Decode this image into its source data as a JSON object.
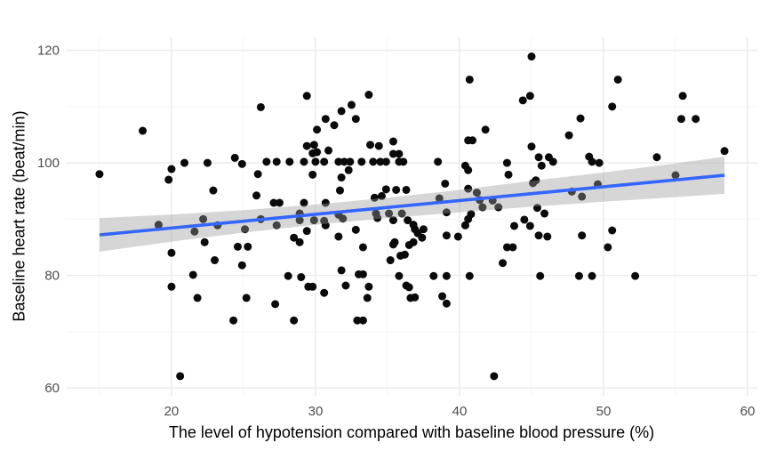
{
  "chart_data": {
    "type": "scatter",
    "title": "",
    "xlabel": "The level of hypotension compared with baseline blood pressure (%)",
    "ylabel": "Baseline heart rate (beat/min)",
    "x_ticks": [
      20,
      30,
      40,
      50,
      60
    ],
    "y_ticks": [
      60,
      80,
      100,
      120
    ],
    "x_minor": [
      15,
      25,
      35,
      45,
      55
    ],
    "y_minor": [
      70,
      90,
      110
    ],
    "xlim": [
      12.72,
      60.68
    ],
    "ylim": [
      58.6,
      122.3
    ],
    "grid": "on",
    "legend": "none",
    "colors": {
      "point": "#0a0a0a",
      "regression_line": "#3366FF",
      "confidence_band": "rgba(153,153,153,0.4)",
      "grid_major": "#e9e9e9",
      "grid_minor": "#f5f5f5",
      "tick_text": "#4d4d4d",
      "axis_title_text": "#000000",
      "background": "#ffffff"
    },
    "regression": {
      "model": "linear",
      "line": [
        [
          15.0,
          87.2
        ],
        [
          58.4,
          97.8
        ]
      ],
      "band_x": [
        15.0,
        20.0,
        25.0,
        30.0,
        35.0,
        40.0,
        45.0,
        50.0,
        55.0,
        58.4
      ],
      "band_upper": [
        90.2,
        90.8,
        91.6,
        92.6,
        93.8,
        95.2,
        96.8,
        98.3,
        99.9,
        101.1
      ],
      "band_lower": [
        84.2,
        86.0,
        87.6,
        89.0,
        90.2,
        91.2,
        92.2,
        93.1,
        93.9,
        94.5
      ]
    },
    "points": [
      [
        18.0,
        105.7
      ],
      [
        15.0,
        98.0
      ],
      [
        26.2,
        109.9
      ],
      [
        29.4,
        111.9
      ],
      [
        30.1,
        105.9
      ],
      [
        30.7,
        107.8
      ],
      [
        31.3,
        106.7
      ],
      [
        31.8,
        109.2
      ],
      [
        32.5,
        110.3
      ],
      [
        32.8,
        107.8
      ],
      [
        33.7,
        112.1
      ],
      [
        40.7,
        114.8
      ],
      [
        41.8,
        105.9
      ],
      [
        44.4,
        111.1
      ],
      [
        44.9,
        111.9
      ],
      [
        45.0,
        118.9
      ],
      [
        47.6,
        104.9
      ],
      [
        48.4,
        107.9
      ],
      [
        50.6,
        110.0
      ],
      [
        51.0,
        114.8
      ],
      [
        55.4,
        107.8
      ],
      [
        55.5,
        111.9
      ],
      [
        56.4,
        107.8
      ],
      [
        29.4,
        103.0
      ],
      [
        29.9,
        103.2
      ],
      [
        29.8,
        101.7
      ],
      [
        30.1,
        101.9
      ],
      [
        30.9,
        102.2
      ],
      [
        33.8,
        103.2
      ],
      [
        34.4,
        103.0
      ],
      [
        35.4,
        103.8
      ],
      [
        35.4,
        101.6
      ],
      [
        35.8,
        101.6
      ],
      [
        40.6,
        104.0
      ],
      [
        40.9,
        104.0
      ],
      [
        45.0,
        102.9
      ],
      [
        53.7,
        101.0
      ],
      [
        58.4,
        102.1
      ],
      [
        20.9,
        100.0
      ],
      [
        22.5,
        100.0
      ],
      [
        24.4,
        100.9
      ],
      [
        24.9,
        99.8
      ],
      [
        26.6,
        100.2
      ],
      [
        27.3,
        100.2
      ],
      [
        28.2,
        100.2
      ],
      [
        29.2,
        100.2
      ],
      [
        30.0,
        100.2
      ],
      [
        30.6,
        100.2
      ],
      [
        31.6,
        100.2
      ],
      [
        32.0,
        100.2
      ],
      [
        32.4,
        100.2
      ],
      [
        33.2,
        100.2
      ],
      [
        34.0,
        100.2
      ],
      [
        34.5,
        100.2
      ],
      [
        34.9,
        100.2
      ],
      [
        35.8,
        100.2
      ],
      [
        36.1,
        100.2
      ],
      [
        38.5,
        100.2
      ],
      [
        43.3,
        100.0
      ],
      [
        46.5,
        100.2
      ],
      [
        45.5,
        101.0
      ],
      [
        46.2,
        101.0
      ],
      [
        49.0,
        101.1
      ],
      [
        49.2,
        100.2
      ],
      [
        49.7,
        100.0
      ],
      [
        19.8,
        97.0
      ],
      [
        20.0,
        98.9
      ],
      [
        26.0,
        98.0
      ],
      [
        29.8,
        97.9
      ],
      [
        31.8,
        97.4
      ],
      [
        32.3,
        98.7
      ],
      [
        39.0,
        96.3
      ],
      [
        40.4,
        99.5
      ],
      [
        40.6,
        98.7
      ],
      [
        43.4,
        97.9
      ],
      [
        45.1,
        96.4
      ],
      [
        45.3,
        96.9
      ],
      [
        45.7,
        99.5
      ],
      [
        55.0,
        97.8
      ],
      [
        22.9,
        95.1
      ],
      [
        25.9,
        94.2
      ],
      [
        31.7,
        95.1
      ],
      [
        34.9,
        95.3
      ],
      [
        35.6,
        95.2
      ],
      [
        36.3,
        95.2
      ],
      [
        38.6,
        93.7
      ],
      [
        40.6,
        95.4
      ],
      [
        41.2,
        94.7
      ],
      [
        47.8,
        94.9
      ],
      [
        48.5,
        94.0
      ],
      [
        49.6,
        96.2
      ],
      [
        27.1,
        92.9
      ],
      [
        27.5,
        92.9
      ],
      [
        29.2,
        92.9
      ],
      [
        30.7,
        92.9
      ],
      [
        34.1,
        93.8
      ],
      [
        34.6,
        94.1
      ],
      [
        41.4,
        93.4
      ],
      [
        41.6,
        92.1
      ],
      [
        42.3,
        93.3
      ],
      [
        42.7,
        92.1
      ],
      [
        45.4,
        92.0
      ],
      [
        19.1,
        89.0
      ],
      [
        21.6,
        87.8
      ],
      [
        22.2,
        90.0
      ],
      [
        23.2,
        88.9
      ],
      [
        25.1,
        88.2
      ],
      [
        25.3,
        85.1
      ],
      [
        24.6,
        85.1
      ],
      [
        22.3,
        85.9
      ],
      [
        26.2,
        90.0
      ],
      [
        27.3,
        88.9
      ],
      [
        28.9,
        91.0
      ],
      [
        28.9,
        89.8
      ],
      [
        29.9,
        89.8
      ],
      [
        30.6,
        89.7
      ],
      [
        29.4,
        87.9
      ],
      [
        30.7,
        88.9
      ],
      [
        31.6,
        90.8
      ],
      [
        31.9,
        90.1
      ],
      [
        31.6,
        86.9
      ],
      [
        32.8,
        88.1
      ],
      [
        28.5,
        86.7
      ],
      [
        28.9,
        85.9
      ],
      [
        33.3,
        85.0
      ],
      [
        34.2,
        91.0
      ],
      [
        34.3,
        90.2
      ],
      [
        35.1,
        91.0
      ],
      [
        36.0,
        91.0
      ],
      [
        35.4,
        89.8
      ],
      [
        36.4,
        89.8
      ],
      [
        36.8,
        89.0
      ],
      [
        36.9,
        88.2
      ],
      [
        37.5,
        88.2
      ],
      [
        35.5,
        85.9
      ],
      [
        36.5,
        85.4
      ],
      [
        35.4,
        85.5
      ],
      [
        36.8,
        85.9
      ],
      [
        37.1,
        87.5
      ],
      [
        37.4,
        86.7
      ],
      [
        39.1,
        91.2
      ],
      [
        39.1,
        87.1
      ],
      [
        39.9,
        86.9
      ],
      [
        40.8,
        90.9
      ],
      [
        40.6,
        90.0
      ],
      [
        40.4,
        88.9
      ],
      [
        43.8,
        88.8
      ],
      [
        44.5,
        89.9
      ],
      [
        44.9,
        88.8
      ],
      [
        45.9,
        91.0
      ],
      [
        43.3,
        85.0
      ],
      [
        43.7,
        85.0
      ],
      [
        46.1,
        86.9
      ],
      [
        45.5,
        87.1
      ],
      [
        48.5,
        87.1
      ],
      [
        50.6,
        88.0
      ],
      [
        50.3,
        85.0
      ],
      [
        36.2,
        83.7
      ],
      [
        35.9,
        83.5
      ],
      [
        35.2,
        82.7
      ],
      [
        43.0,
        82.2
      ],
      [
        20.0,
        84.0
      ],
      [
        23.0,
        82.7
      ],
      [
        24.9,
        81.8
      ],
      [
        31.8,
        80.9
      ],
      [
        33.0,
        80.2
      ],
      [
        33.3,
        80.2
      ],
      [
        20.0,
        78.0
      ],
      [
        21.5,
        80.1
      ],
      [
        28.1,
        79.9
      ],
      [
        29.0,
        79.7
      ],
      [
        29.5,
        78.0
      ],
      [
        29.8,
        78.0
      ],
      [
        30.6,
        76.9
      ],
      [
        32.1,
        78.2
      ],
      [
        33.7,
        78.0
      ],
      [
        35.8,
        79.9
      ],
      [
        36.3,
        78.2
      ],
      [
        36.5,
        77.9
      ],
      [
        38.2,
        79.9
      ],
      [
        39.1,
        79.9
      ],
      [
        40.7,
        79.9
      ],
      [
        45.6,
        79.9
      ],
      [
        48.3,
        79.9
      ],
      [
        49.2,
        79.9
      ],
      [
        52.2,
        79.9
      ],
      [
        21.8,
        76.0
      ],
      [
        25.2,
        76.0
      ],
      [
        27.2,
        74.9
      ],
      [
        33.6,
        76.0
      ],
      [
        36.6,
        76.0
      ],
      [
        36.9,
        76.1
      ],
      [
        38.8,
        76.3
      ],
      [
        39.1,
        75.0
      ],
      [
        24.3,
        72.0
      ],
      [
        28.5,
        72.0
      ],
      [
        32.9,
        72.0
      ],
      [
        33.3,
        72.0
      ],
      [
        20.6,
        62.1
      ],
      [
        42.4,
        62.1
      ]
    ]
  }
}
